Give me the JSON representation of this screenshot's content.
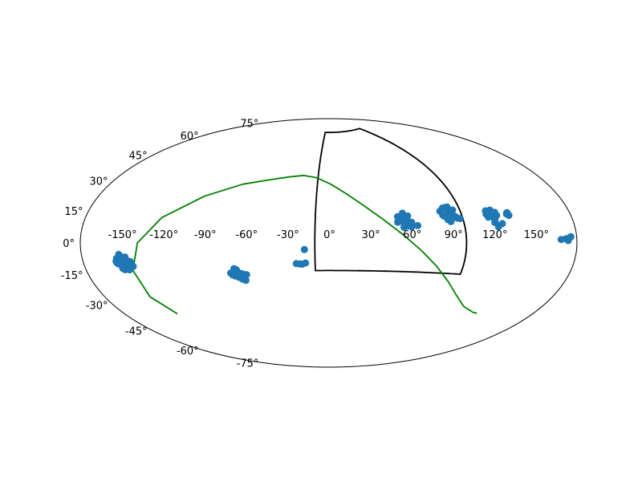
{
  "chart_data": {
    "type": "scatter",
    "projection": "aitoff",
    "grid": false,
    "colors": {
      "points": "#1f77b4",
      "curve": "#008000",
      "region": "#000000",
      "frame": "#000000"
    },
    "lon_ticks": [
      {
        "value": -150,
        "label": "-150°"
      },
      {
        "value": -120,
        "label": "-120°"
      },
      {
        "value": -90,
        "label": "-90°"
      },
      {
        "value": -60,
        "label": "-60°"
      },
      {
        "value": -30,
        "label": "-30°"
      },
      {
        "value": 0,
        "label": "0°"
      },
      {
        "value": 30,
        "label": "30°"
      },
      {
        "value": 60,
        "label": "60°"
      },
      {
        "value": 90,
        "label": "90°"
      },
      {
        "value": 120,
        "label": "120°"
      },
      {
        "value": 150,
        "label": "150°"
      }
    ],
    "lat_ticks": [
      {
        "value": 75,
        "label": "75°"
      },
      {
        "value": 60,
        "label": "60°"
      },
      {
        "value": 45,
        "label": "45°"
      },
      {
        "value": 30,
        "label": "30°"
      },
      {
        "value": 15,
        "label": "15°"
      },
      {
        "value": 0,
        "label": "0°"
      },
      {
        "value": -15,
        "label": "-15°"
      },
      {
        "value": -30,
        "label": "-30°"
      },
      {
        "value": -45,
        "label": "-45°"
      },
      {
        "value": -60,
        "label": "-60°"
      },
      {
        "value": -75,
        "label": "-75°"
      }
    ],
    "points": [
      [
        -155.1,
        -8.1
      ],
      [
        -153.2,
        -9.1
      ],
      [
        -154.7,
        -11.1
      ],
      [
        -152.1,
        -7.0
      ],
      [
        -150.4,
        -11.9
      ],
      [
        -151.5,
        -14.3
      ],
      [
        -149.3,
        -13.1
      ],
      [
        -156.0,
        -9.6
      ],
      [
        -150.2,
        -8.6
      ],
      [
        -145.8,
        -10.2
      ],
      [
        -148.0,
        -9.5
      ],
      [
        -148.3,
        -14.6
      ],
      [
        -152.9,
        -13.5
      ],
      [
        -152.2,
        -11.0
      ],
      [
        -148.8,
        -7.6
      ],
      [
        -152.9,
        -6.1
      ],
      [
        -155.6,
        -10.5
      ],
      [
        -144.7,
        -12.9
      ],
      [
        -74.3,
        -20.4
      ],
      [
        -72.3,
        -20.1
      ],
      [
        -69.4,
        -18.3
      ],
      [
        -69.6,
        -20.8
      ],
      [
        -66.3,
        -21.9
      ],
      [
        -64.9,
        -22.7
      ],
      [
        -66.9,
        -24.8
      ],
      [
        -64.6,
        -25.8
      ],
      [
        -68.9,
        -23.5
      ],
      [
        -70.9,
        -17.5
      ],
      [
        -66.8,
        -20.9
      ],
      [
        -64.7,
        -21.6
      ],
      [
        -62.7,
        -21.9
      ],
      [
        -71.4,
        -22.5
      ],
      [
        -73.2,
        -21.7
      ],
      [
        -17.6,
        -4.8
      ],
      [
        -21.4,
        -15.2
      ],
      [
        -23.9,
        -14.9
      ],
      [
        -19.7,
        -15.3
      ],
      [
        -17.1,
        -14.5
      ],
      [
        55.6,
        19.0
      ],
      [
        52.6,
        16.9
      ],
      [
        57.8,
        17.0
      ],
      [
        59.0,
        15.1
      ],
      [
        56.6,
        13.7
      ],
      [
        53.9,
        15.8
      ],
      [
        61.5,
        14.2
      ],
      [
        56.0,
        20.7
      ],
      [
        51.8,
        18.4
      ],
      [
        61.0,
        11.0
      ],
      [
        55.3,
        10.9
      ],
      [
        58.6,
        12.9
      ],
      [
        59.4,
        18.7
      ],
      [
        51.2,
        14.5
      ],
      [
        54.6,
        16.2
      ],
      [
        57.8,
        11.8
      ],
      [
        53.4,
        15.1
      ],
      [
        65.6,
        11.9
      ],
      [
        84.7,
        21.0
      ],
      [
        87.6,
        23.0
      ],
      [
        91.4,
        23.4
      ],
      [
        90.3,
        19.6
      ],
      [
        94.6,
        21.3
      ],
      [
        86.5,
        17.7
      ],
      [
        92.3,
        16.0
      ],
      [
        90.6,
        13.9
      ],
      [
        96.0,
        16.0
      ],
      [
        88.8,
        15.3
      ],
      [
        92.1,
        21.5
      ],
      [
        94.9,
        17.0
      ],
      [
        93.3,
        18.5
      ],
      [
        98.0,
        15.6
      ],
      [
        85.9,
        18.6
      ],
      [
        89.5,
        23.2
      ],
      [
        119.0,
        19.4
      ],
      [
        122.5,
        19.6
      ],
      [
        125.3,
        18.1
      ],
      [
        121.6,
        15.9
      ],
      [
        125.7,
        16.2
      ],
      [
        118.4,
        17.5
      ],
      [
        123.2,
        13.2
      ],
      [
        119.2,
        15.5
      ],
      [
        127.9,
        11.3
      ],
      [
        122.6,
        12.2
      ],
      [
        125.0,
        10.2
      ],
      [
        124.5,
        9.5
      ],
      [
        133.5,
        16.7
      ],
      [
        134.3,
        17.4
      ],
      [
        134.8,
        15.7
      ],
      [
        121.2,
        17.3
      ],
      [
        123.8,
        17.0
      ],
      [
        168.6,
        1.7
      ],
      [
        172.3,
        2.0
      ],
      [
        174.8,
        2.4
      ],
      [
        173.7,
        1.1
      ],
      [
        175.8,
        2.9
      ]
    ],
    "region": {
      "lon": [
        -10,
        100
      ],
      "lat": [
        -20,
        80
      ]
    },
    "curve": [
      [
        -140.0,
        -41.4
      ],
      [
        -146.6,
        -30
      ],
      [
        -146.1,
        -15
      ],
      [
        -138.6,
        0
      ],
      [
        -124.3,
        15
      ],
      [
        -100.3,
        30
      ],
      [
        -75.3,
        40
      ],
      [
        -50.4,
        45
      ],
      [
        -37.3,
        47.1
      ],
      [
        -24.2,
        48.6
      ],
      [
        -11.1,
        47.1
      ],
      [
        2.0,
        42.5
      ],
      [
        15.1,
        35.3
      ],
      [
        28.2,
        26.3
      ],
      [
        41.3,
        16.2
      ],
      [
        54.4,
        5.6
      ],
      [
        67.5,
        -5.2
      ],
      [
        80.6,
        -15.7
      ],
      [
        93.6,
        -25.4
      ],
      [
        106.7,
        -33.5
      ],
      [
        119.8,
        -39.1
      ],
      [
        132.9,
        -41.4
      ],
      [
        137.0,
        -41.4
      ]
    ]
  }
}
